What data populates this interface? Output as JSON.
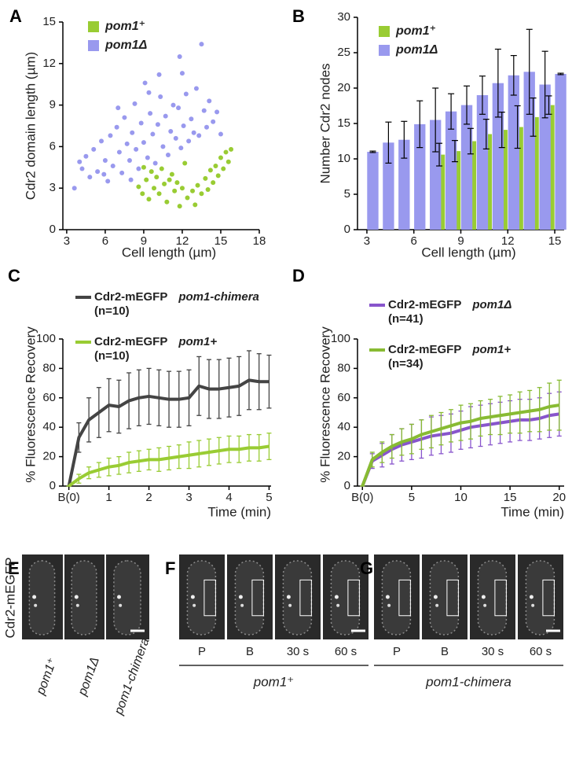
{
  "chart_data": [
    {
      "panel": "A",
      "type": "scatter",
      "xlabel": "Cell length (µm)",
      "ylabel": "Cdr2 domain length (µm)",
      "xlim": [
        2.7,
        18
      ],
      "ylim": [
        0,
        15
      ],
      "xticks": [
        3,
        6,
        9,
        12,
        15,
        18
      ],
      "yticks": [
        0,
        3,
        6,
        9,
        12,
        15
      ],
      "series": [
        {
          "name": "pom1⁺",
          "color": "#99cc33",
          "x": [
            8.6,
            8.9,
            9.2,
            9.4,
            9.6,
            9.8,
            10.0,
            10.2,
            10.4,
            10.6,
            10.8,
            11.0,
            11.2,
            11.4,
            11.6,
            11.8,
            12.0,
            12.4,
            12.8,
            13.2,
            13.5,
            13.8,
            14.0,
            14.2,
            14.4,
            14.6,
            14.8,
            15.0,
            15.2,
            15.4,
            15.6,
            15.8,
            13.0,
            12.2,
            9.0
          ],
          "values": [
            3.1,
            2.6,
            3.6,
            2.2,
            4.2,
            3.0,
            3.8,
            2.6,
            4.4,
            3.3,
            2.0,
            3.6,
            4.0,
            2.8,
            3.4,
            1.7,
            3.0,
            2.3,
            2.8,
            3.2,
            2.6,
            3.7,
            2.9,
            4.3,
            3.4,
            4.6,
            3.9,
            5.2,
            4.4,
            5.6,
            4.9,
            5.8,
            1.8,
            4.8,
            4.5
          ]
        },
        {
          "name": "pom1Δ",
          "color": "#9999ee",
          "x": [
            3.6,
            4.2,
            4.5,
            4.8,
            5.1,
            5.4,
            5.7,
            6.0,
            6.2,
            6.4,
            6.6,
            6.9,
            7.1,
            7.3,
            7.5,
            7.7,
            7.9,
            8.1,
            8.3,
            8.4,
            8.6,
            8.8,
            9.0,
            9.1,
            9.3,
            9.5,
            9.7,
            9.9,
            10.1,
            10.3,
            10.5,
            10.7,
            10.9,
            11.1,
            11.3,
            11.5,
            11.7,
            11.9,
            12.1,
            12.3,
            12.5,
            12.7,
            12.9,
            13.1,
            13.3,
            13.5,
            13.7,
            13.9,
            14.1,
            14.4,
            14.7,
            15.0,
            4.0,
            5.9,
            8.0,
            10.2,
            11.8,
            12.0,
            7.0,
            9.4
          ],
          "values": [
            3.0,
            4.4,
            5.3,
            3.8,
            5.8,
            4.2,
            6.4,
            5.0,
            3.5,
            6.8,
            4.6,
            7.4,
            5.6,
            4.1,
            8.1,
            6.2,
            5.0,
            7.0,
            9.1,
            5.8,
            4.4,
            7.7,
            6.3,
            10.6,
            5.2,
            8.4,
            6.9,
            4.8,
            7.6,
            9.6,
            6.0,
            8.2,
            5.4,
            7.1,
            9.0,
            6.6,
            8.8,
            5.9,
            7.5,
            9.8,
            6.4,
            8.0,
            7.0,
            10.2,
            6.8,
            13.4,
            8.6,
            7.4,
            9.3,
            7.8,
            8.5,
            6.9,
            4.9,
            4.0,
            3.6,
            11.2,
            12.5,
            11.3,
            8.8,
            9.9
          ]
        }
      ]
    },
    {
      "panel": "B",
      "type": "bar",
      "xlabel": "Cell length (µm)",
      "ylabel": "Number Cdr2 nodes",
      "xlim": [
        2.4,
        15.6
      ],
      "ylim": [
        0,
        30
      ],
      "xticks": [
        3,
        6,
        9,
        12,
        15
      ],
      "yticks": [
        0,
        5,
        10,
        15,
        20,
        25,
        30
      ],
      "x": [
        3,
        4,
        5,
        6,
        7,
        8,
        9,
        10,
        11,
        12,
        13,
        14,
        15
      ],
      "series": [
        {
          "name": "pom1⁺",
          "color": "#99cc33",
          "values": [
            null,
            null,
            null,
            null,
            null,
            10.6,
            11.1,
            12.5,
            13.5,
            14.1,
            14.5,
            15.9,
            17.6
          ],
          "errors": [
            null,
            null,
            null,
            null,
            null,
            1.6,
            1.5,
            1.8,
            2.1,
            2.5,
            3.0,
            2.7,
            1.3
          ]
        },
        {
          "name": "pom1Δ",
          "color": "#9999ee",
          "values": [
            11.0,
            12.3,
            12.7,
            14.9,
            15.5,
            16.7,
            17.6,
            19.0,
            20.7,
            21.8,
            22.3,
            20.5,
            22.0
          ],
          "errors": [
            0.1,
            2.9,
            2.6,
            3.3,
            4.5,
            2.5,
            2.7,
            2.7,
            4.8,
            2.8,
            6.0,
            4.7,
            0.1
          ]
        }
      ]
    },
    {
      "panel": "C",
      "type": "line",
      "xlabel": "Time (min)",
      "ylabel": "% Fluorescence Recovery",
      "xlim": [
        -0.15,
        5.05
      ],
      "ylim": [
        0,
        100
      ],
      "xticks": [
        {
          "value": 0,
          "label": "B(0)"
        },
        1,
        2,
        3,
        4,
        5
      ],
      "yticks": [
        0,
        20,
        40,
        60,
        80,
        100
      ],
      "x": [
        0,
        0.25,
        0.5,
        0.75,
        1,
        1.25,
        1.5,
        1.75,
        2,
        2.25,
        2.5,
        2.75,
        3,
        3.25,
        3.5,
        3.75,
        4,
        4.25,
        4.5,
        4.75,
        5
      ],
      "series": [
        {
          "name": "Cdr2-mEGFP",
          "strain": "pom1-chimera",
          "n": "(n=10)",
          "color": "#444444",
          "values": [
            0,
            33,
            45,
            50,
            55,
            54,
            58,
            60,
            61,
            60,
            59,
            59,
            60,
            68,
            66,
            66,
            67,
            68,
            72,
            71,
            71
          ],
          "errors": [
            0,
            10,
            15,
            17,
            18,
            18,
            19,
            19,
            19,
            19,
            19,
            19,
            19,
            20,
            20,
            20,
            20,
            20,
            20,
            19,
            18
          ]
        },
        {
          "name": "Cdr2-mEGFP",
          "strain": "pom1+",
          "n": "(n=10)",
          "color": "#99cc33",
          "values": [
            0,
            5,
            9,
            11,
            13,
            14,
            16,
            17,
            18,
            18,
            19,
            20,
            21,
            22,
            23,
            24,
            25,
            25,
            26,
            26,
            27
          ],
          "errors": [
            0,
            3,
            4,
            5,
            6,
            6,
            7,
            7,
            7,
            8,
            8,
            8,
            9,
            9,
            9,
            9,
            9,
            9,
            9,
            9,
            9
          ]
        }
      ]
    },
    {
      "panel": "D",
      "type": "line",
      "xlabel": "Time (min)",
      "ylabel": "% Fluorescence Recovery",
      "xlim": [
        -0.5,
        20.5
      ],
      "ylim": [
        0,
        100
      ],
      "xticks": [
        {
          "value": 0,
          "label": "B(0)"
        },
        5,
        10,
        15,
        20
      ],
      "yticks": [
        0,
        20,
        40,
        60,
        80,
        100
      ],
      "x": [
        0,
        1,
        2,
        3,
        4,
        5,
        6,
        7,
        8,
        9,
        10,
        11,
        12,
        13,
        14,
        15,
        16,
        17,
        18,
        19,
        20
      ],
      "series": [
        {
          "name": "Cdr2-mEGFP",
          "strain": "pom1Δ",
          "n": "(n=41)",
          "color": "#8855cc",
          "values": [
            0,
            17,
            21,
            25,
            28,
            30,
            32,
            34,
            35,
            36,
            38,
            40,
            41,
            42,
            43,
            44,
            45,
            45,
            46,
            48,
            49
          ],
          "errors": [
            0,
            5,
            8,
            10,
            11,
            12,
            13,
            13,
            13,
            13,
            13,
            14,
            14,
            14,
            14,
            14,
            14,
            14,
            14,
            15,
            15
          ]
        },
        {
          "name": "Cdr2-mEGFP",
          "strain": "pom1+",
          "n": "(n=34)",
          "color": "#88bb33",
          "values": [
            0,
            18,
            23,
            27,
            30,
            32,
            35,
            37,
            39,
            41,
            43,
            44,
            46,
            47,
            48,
            49,
            50,
            51,
            52,
            54,
            55
          ],
          "errors": [
            0,
            5,
            7,
            8,
            9,
            10,
            10,
            11,
            11,
            11,
            12,
            12,
            12,
            12,
            13,
            13,
            14,
            14,
            15,
            16,
            17
          ]
        }
      ]
    }
  ],
  "images": [
    {
      "panel": "E",
      "ylabel": "Cdr2-mEGFP",
      "labels": [
        "pom1⁺",
        "pom1Δ",
        "pom1-chimera"
      ]
    },
    {
      "panel": "F",
      "frames": [
        "P",
        "B",
        "30 s",
        "60 s"
      ],
      "strain": "pom1⁺"
    },
    {
      "panel": "G",
      "frames": [
        "P",
        "B",
        "30 s",
        "60 s"
      ],
      "strain": "pom1-chimera"
    }
  ]
}
